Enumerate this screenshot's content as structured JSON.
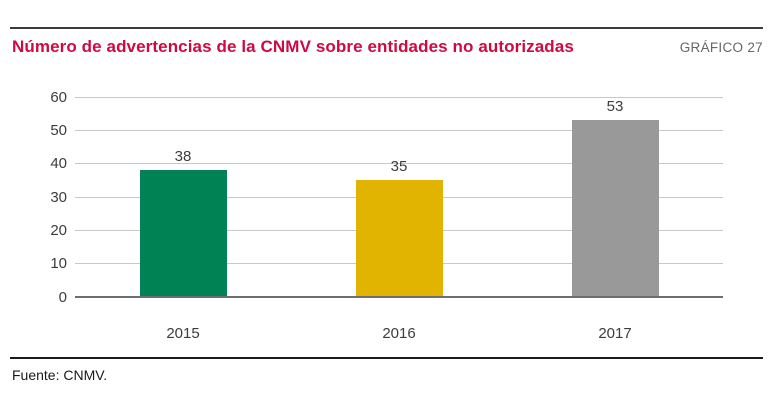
{
  "header": {
    "title": "Número de advertencias de la CNMV sobre entidades no autorizadas",
    "grafico_label": "GRÁFICO 27"
  },
  "footer": {
    "source": "Fuente: CNMV."
  },
  "colors": {
    "title_accent": "#ce0a44",
    "grafico_label": "#63666a",
    "gridline": "#c8c8c8",
    "axis_baseline": "#6d6e71",
    "text": "#3c3c3b",
    "top_rule": "#3b3b3b",
    "bottom_rule": "#1a1a1a"
  },
  "chart_data": {
    "type": "bar",
    "title": "Número de advertencias de la CNMV sobre entidades no autorizadas",
    "categories": [
      "2015",
      "2016",
      "2017"
    ],
    "values": [
      38,
      35,
      53
    ],
    "bar_colors": [
      "#008255",
      "#e0b400",
      "#999999"
    ],
    "xlabel": "",
    "ylabel": "",
    "ylim": [
      0,
      60
    ],
    "yticks": [
      0,
      10,
      20,
      30,
      40,
      50,
      60
    ],
    "grid": true,
    "legend": false,
    "value_labels_shown": true
  }
}
